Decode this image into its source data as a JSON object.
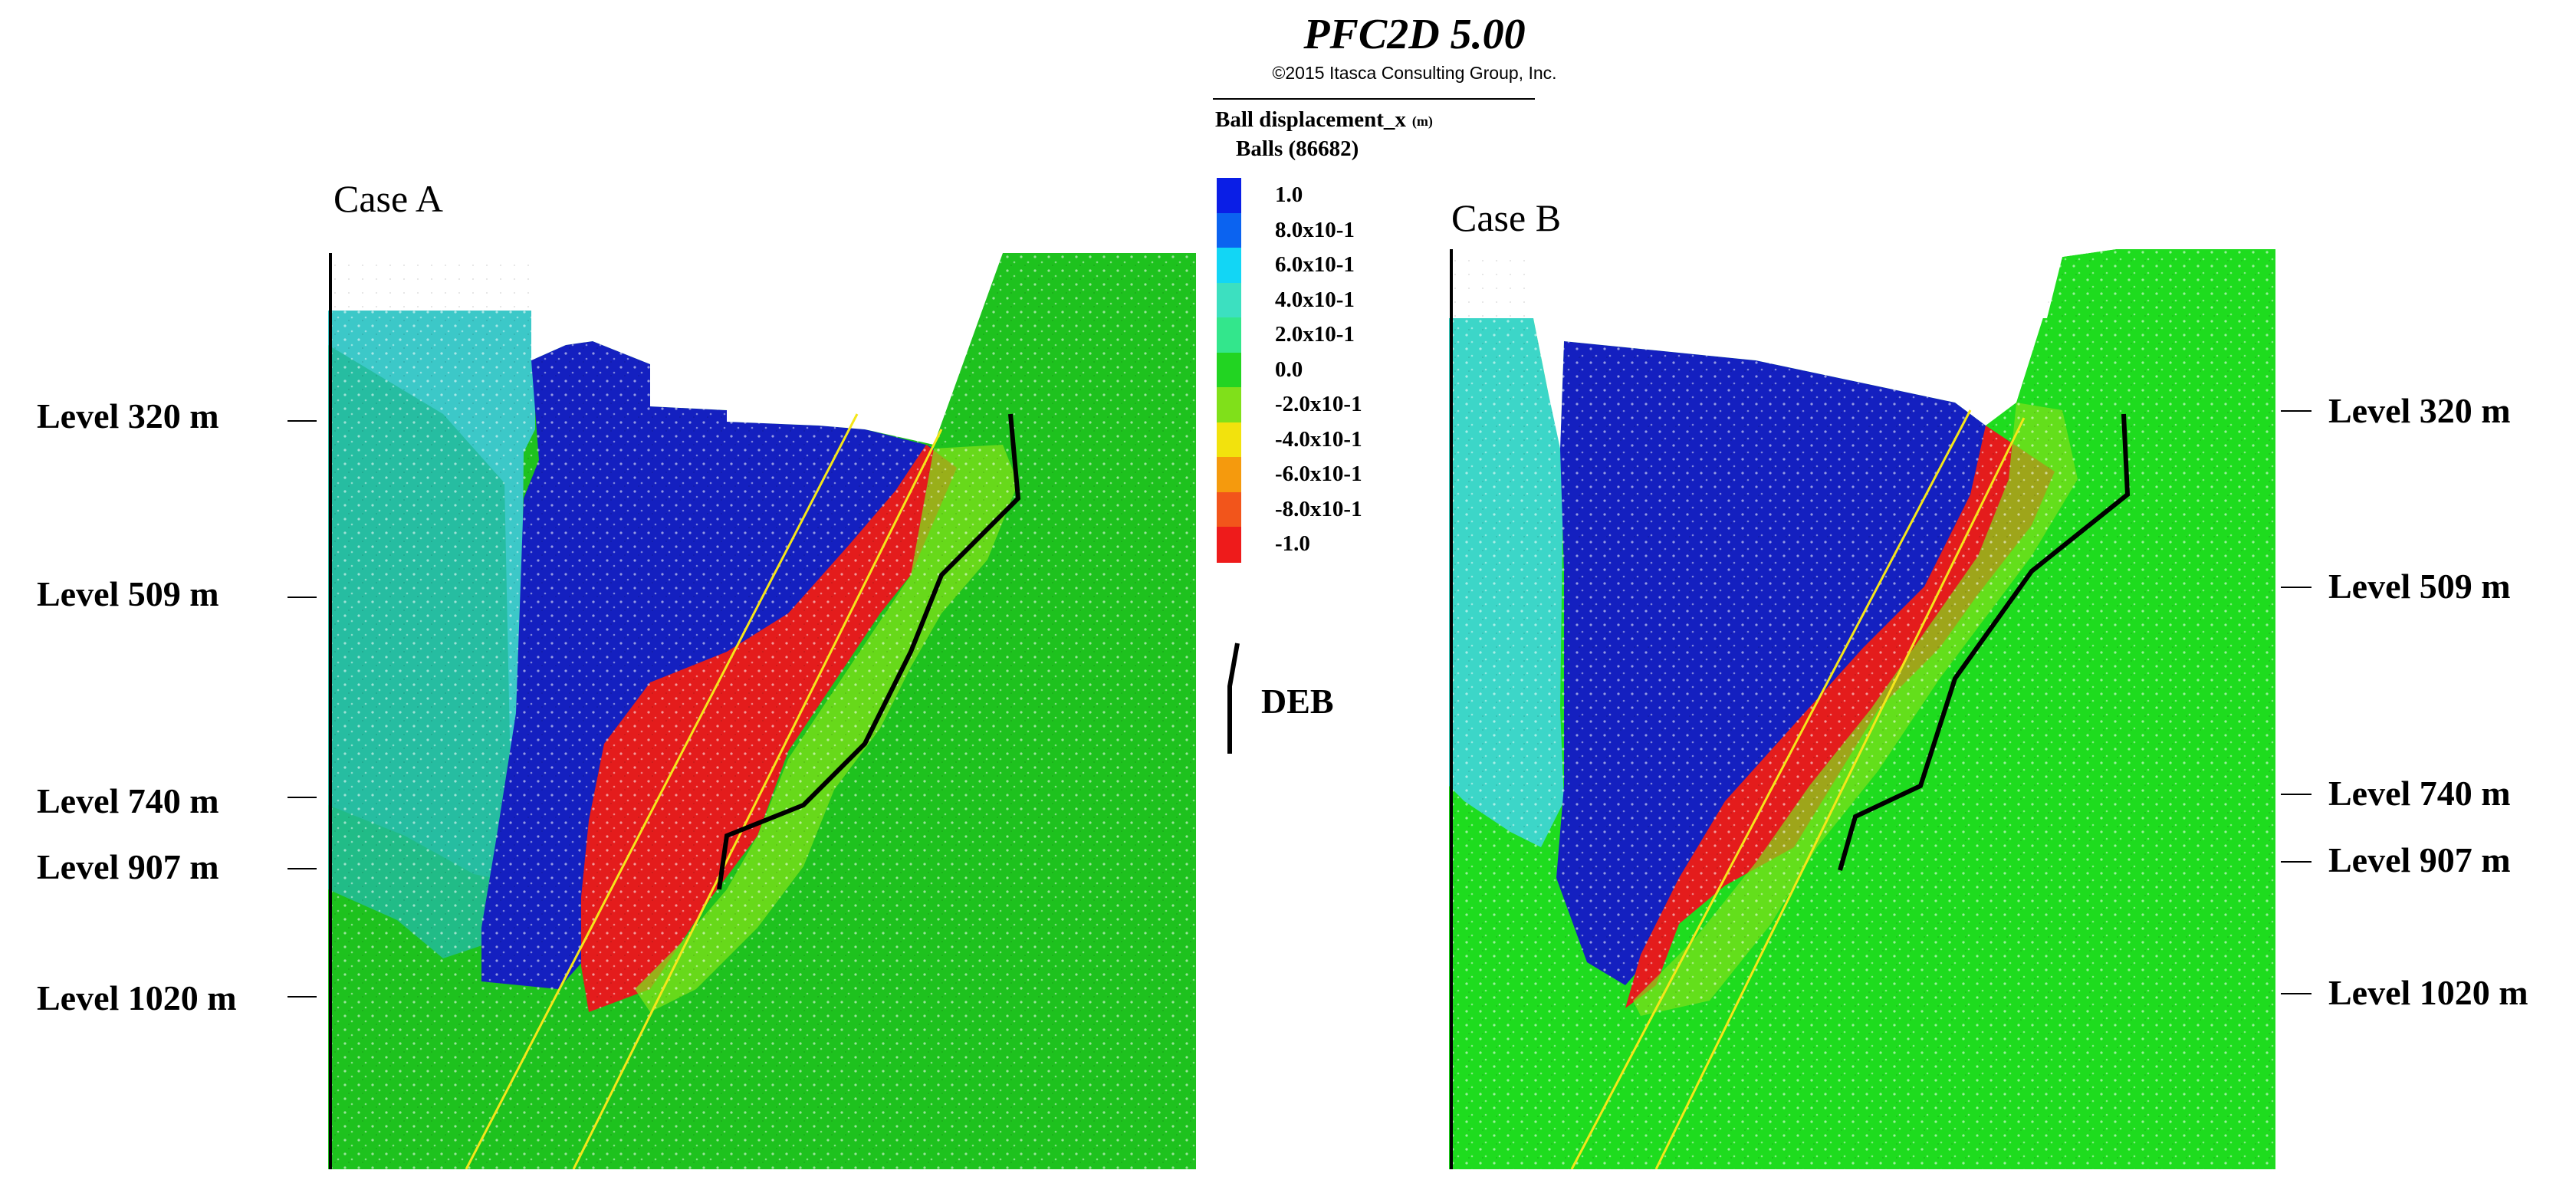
{
  "header": {
    "app_title": "PFC2D 5.00",
    "copyright": "©2015 Itasca Consulting Group, Inc."
  },
  "legend": {
    "title": "Ball displacement_x",
    "unit": "(m)",
    "subtitle": "Balls (86682)",
    "entries": [
      {
        "label": "1.0",
        "color": "#0a1ee6"
      },
      {
        "label": "8.0x10-1",
        "color": "#0b63f0"
      },
      {
        "label": "6.0x10-1",
        "color": "#12d6f5"
      },
      {
        "label": "4.0x10-1",
        "color": "#3ce0c0"
      },
      {
        "label": "2.0x10-1",
        "color": "#33e68c"
      },
      {
        "label": "0.0",
        "color": "#22d422"
      },
      {
        "label": "-2.0x10-1",
        "color": "#80e01a"
      },
      {
        "label": "-4.0x10-1",
        "color": "#f2e20d"
      },
      {
        "label": "-6.0x10-1",
        "color": "#f59a0d"
      },
      {
        "label": "-8.0x10-1",
        "color": "#f2551b"
      },
      {
        "label": "-1.0",
        "color": "#ee1b1b"
      }
    ]
  },
  "deb_legend": {
    "label": "DEB",
    "color": "#000000"
  },
  "panels": [
    {
      "label": "Case A"
    },
    {
      "label": "Case B"
    }
  ],
  "levels_left": [
    "Level 320 m",
    "Level 509 m",
    "Level 740 m",
    "Level 907 m",
    "Level 1020 m"
  ],
  "levels_right": [
    "Level 320 m",
    "Level 509 m",
    "Level 740 m",
    "Level 907 m",
    "Level 1020 m"
  ],
  "colors": {
    "green_zone": "#1ec21e",
    "blue_zone": "#1420c0",
    "red_zone": "#e41c1c",
    "cyan_zone": "#3cc8c8",
    "teal_zone": "#22bb9a",
    "fault_line": "#f5e61a",
    "deb_line": "#000000"
  }
}
